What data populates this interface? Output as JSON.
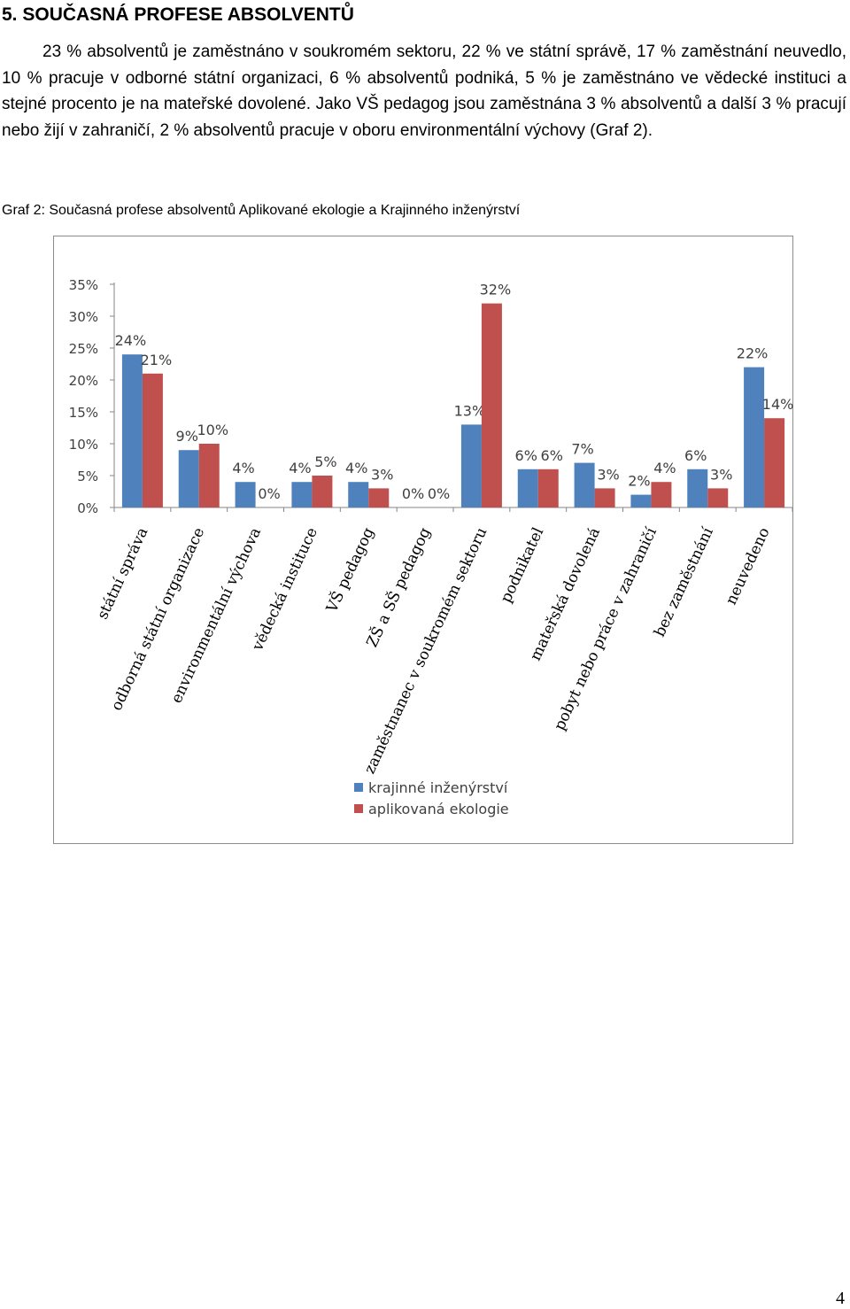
{
  "heading": "5. SOUČASNÁ PROFESE ABSOLVENTŮ",
  "paragraph": "23 % absolventů je zaměstnáno v soukromém sektoru, 22 % ve státní správě, 17 % zaměstnání neuvedlo, 10 % pracuje v odborné státní organizaci, 6 % absolventů podniká, 5 % je zaměstnáno ve vědecké instituci a stejné procento je na mateřské dovolené. Jako VŠ pedagog jsou zaměstnána 3 % absolventů a další 3 % pracují nebo žijí v zahraničí, 2 % absolventů pracuje v oboru environmentální výchovy (Graf 2).",
  "caption": "Graf 2: Současná profese absolventů Aplikované ekologie a Krajinného inženýrství",
  "page_number": "4",
  "chart_data": {
    "type": "bar",
    "categories": [
      "státní správa",
      "odborná státní organizace",
      "environmentální výchova",
      "vědecká instituce",
      "VŠ pedagog",
      "ZŠ a SŠ pedagog",
      "zaměstnanec v soukromém sektoru",
      "podnikatel",
      "mateřská dovolená",
      "pobyt nebo práce v zahraničí",
      "bez zaměstnání",
      "neuvedeno"
    ],
    "series": [
      {
        "name": "krajinné inženýrství",
        "color": "#4f81bd",
        "values": [
          24,
          9,
          4,
          4,
          4,
          0,
          13,
          6,
          7,
          2,
          6,
          22
        ],
        "labels": [
          "24%",
          "9%",
          "4%",
          "4%",
          "4%",
          "0%",
          "13%",
          "6%",
          "7%",
          "2%",
          "6%",
          "22%"
        ]
      },
      {
        "name": "aplikovaná ekologie",
        "color": "#c0504d",
        "values": [
          21,
          10,
          0,
          5,
          3,
          0,
          32,
          6,
          3,
          4,
          3,
          14
        ],
        "labels": [
          "21%",
          "10%",
          "0%",
          "5%",
          "3%",
          "0%",
          "32%",
          "6%",
          "3%",
          "4%",
          "3%",
          "14%"
        ]
      }
    ],
    "yticks": [
      "0%",
      "5%",
      "10%",
      "15%",
      "20%",
      "25%",
      "30%",
      "35%"
    ],
    "ylim": [
      0,
      35
    ],
    "legend_position": "bottom"
  }
}
